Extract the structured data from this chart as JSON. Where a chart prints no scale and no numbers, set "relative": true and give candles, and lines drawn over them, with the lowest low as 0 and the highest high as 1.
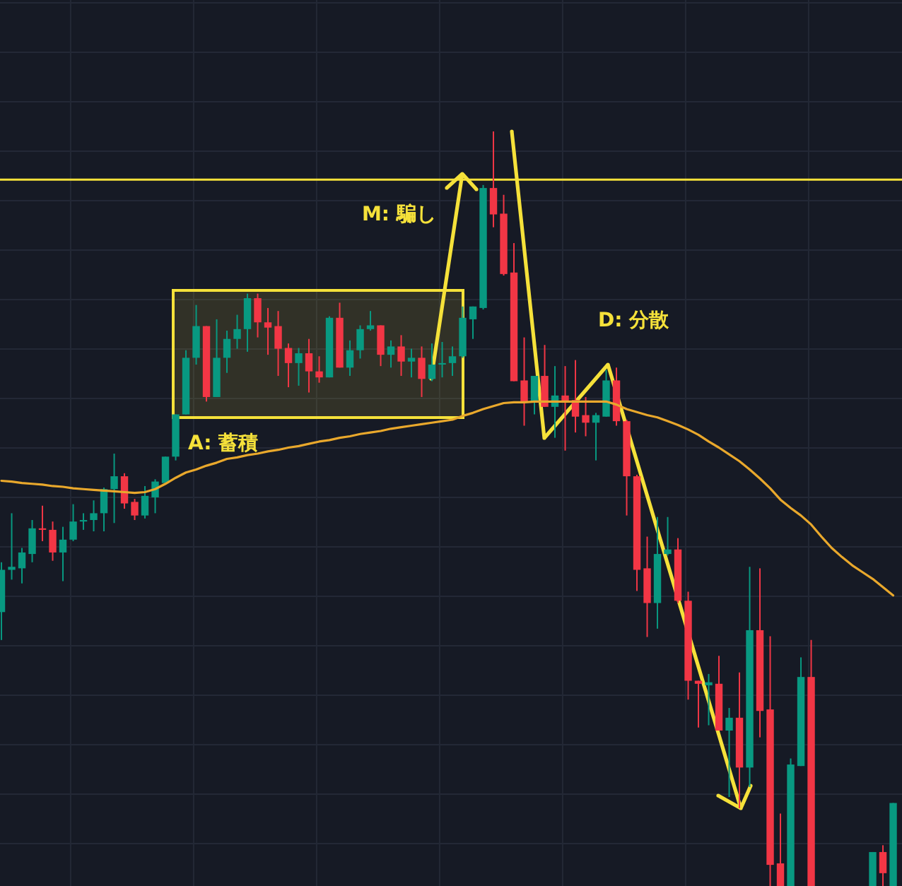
{
  "chart_data": {
    "type": "candlestick",
    "relative": true,
    "grid": true,
    "categories": [
      null,
      null,
      null,
      null,
      null,
      null,
      null,
      null,
      null,
      null,
      null,
      null,
      null,
      null,
      null,
      null,
      null,
      null,
      null,
      null,
      null,
      null,
      null,
      null,
      null,
      null,
      null,
      null,
      null,
      null,
      null,
      null,
      null,
      null,
      null,
      null,
      null,
      null,
      null,
      null,
      null,
      null,
      null,
      null,
      null,
      null,
      null,
      null,
      null,
      null,
      null,
      null,
      null,
      null,
      null,
      null,
      null,
      null,
      null,
      null,
      null,
      null,
      null,
      null,
      null,
      null,
      null,
      null,
      null,
      null,
      null,
      null,
      null,
      null,
      null,
      null,
      null,
      null,
      null,
      null,
      null,
      null,
      null,
      null,
      null,
      null,
      null,
      null
    ],
    "ohlc": [
      [
        0.363,
        0.429,
        0.326,
        0.419
      ],
      [
        0.419,
        0.494,
        0.406,
        0.423
      ],
      [
        0.421,
        0.448,
        0.401,
        0.442
      ],
      [
        0.44,
        0.485,
        0.429,
        0.474
      ],
      [
        0.474,
        0.504,
        0.457,
        0.472
      ],
      [
        0.472,
        0.483,
        0.431,
        0.442
      ],
      [
        0.442,
        0.476,
        0.404,
        0.459
      ],
      [
        0.459,
        0.506,
        0.457,
        0.483
      ],
      [
        0.483,
        0.494,
        0.472,
        0.485
      ],
      [
        0.485,
        0.511,
        0.47,
        0.494
      ],
      [
        0.494,
        0.528,
        0.47,
        0.526
      ],
      [
        0.526,
        0.573,
        0.481,
        0.543
      ],
      [
        0.543,
        0.547,
        0.5,
        0.507
      ],
      [
        0.509,
        0.513,
        0.485,
        0.491
      ],
      [
        0.491,
        0.53,
        0.487,
        0.517
      ],
      [
        0.515,
        0.539,
        0.494,
        0.536
      ],
      [
        0.534,
        0.569,
        0.532,
        0.569
      ],
      [
        0.569,
        0.625,
        0.564,
        0.625
      ],
      [
        0.625,
        0.71,
        0.625,
        0.7
      ],
      [
        0.7,
        0.77,
        0.691,
        0.742
      ],
      [
        0.742,
        0.742,
        0.642,
        0.648
      ],
      [
        0.648,
        0.751,
        0.648,
        0.7
      ],
      [
        0.7,
        0.736,
        0.68,
        0.725
      ],
      [
        0.725,
        0.757,
        0.712,
        0.738
      ],
      [
        0.738,
        0.785,
        0.708,
        0.779
      ],
      [
        0.779,
        0.785,
        0.727,
        0.747
      ],
      [
        0.747,
        0.766,
        0.704,
        0.74
      ],
      [
        0.742,
        0.762,
        0.676,
        0.712
      ],
      [
        0.713,
        0.719,
        0.661,
        0.693
      ],
      [
        0.693,
        0.713,
        0.663,
        0.706
      ],
      [
        0.706,
        0.725,
        0.654,
        0.682
      ],
      [
        0.682,
        0.702,
        0.667,
        0.674
      ],
      [
        0.674,
        0.755,
        0.674,
        0.753
      ],
      [
        0.753,
        0.773,
        0.687,
        0.687
      ],
      [
        0.687,
        0.723,
        0.676,
        0.71
      ],
      [
        0.71,
        0.743,
        0.699,
        0.738
      ],
      [
        0.738,
        0.762,
        0.736,
        0.743
      ],
      [
        0.743,
        0.743,
        0.689,
        0.704
      ],
      [
        0.704,
        0.723,
        0.687,
        0.715
      ],
      [
        0.715,
        0.73,
        0.676,
        0.695
      ],
      [
        0.695,
        0.712,
        0.674,
        0.7
      ],
      [
        0.7,
        0.715,
        0.648,
        0.672
      ],
      [
        0.672,
        0.719,
        0.669,
        0.691
      ],
      [
        0.691,
        0.721,
        0.674,
        0.693
      ],
      [
        0.693,
        0.715,
        0.676,
        0.702
      ],
      [
        0.702,
        0.768,
        0.7,
        0.753
      ],
      [
        0.751,
        0.768,
        0.725,
        0.768
      ],
      [
        0.766,
        0.929,
        0.764,
        0.925
      ],
      [
        0.925,
        1.0,
        0.873,
        0.89
      ],
      [
        0.891,
        0.916,
        0.809,
        0.811
      ],
      [
        0.813,
        0.852,
        0.669,
        0.669
      ],
      [
        0.67,
        0.727,
        0.61,
        0.642
      ],
      [
        0.642,
        0.676,
        0.625,
        0.676
      ],
      [
        0.676,
        0.717,
        0.635,
        0.635
      ],
      [
        0.635,
        0.689,
        0.594,
        0.65
      ],
      [
        0.65,
        0.689,
        0.577,
        0.642
      ],
      [
        0.644,
        0.697,
        0.601,
        0.622
      ],
      [
        0.624,
        0.648,
        0.596,
        0.614
      ],
      [
        0.614,
        0.627,
        0.564,
        0.624
      ],
      [
        0.622,
        0.684,
        0.622,
        0.67
      ],
      [
        0.67,
        0.687,
        0.61,
        0.616
      ],
      [
        0.616,
        0.618,
        0.491,
        0.543
      ],
      [
        0.543,
        0.545,
        0.391,
        0.419
      ],
      [
        0.421,
        0.463,
        0.33,
        0.375
      ],
      [
        0.375,
        0.489,
        0.341,
        0.44
      ],
      [
        0.44,
        0.489,
        0.438,
        0.446
      ],
      [
        0.446,
        0.461,
        0.375,
        0.378
      ],
      [
        0.378,
        0.39,
        0.247,
        0.272
      ],
      [
        0.272,
        0.272,
        0.21,
        0.268
      ],
      [
        0.266,
        0.281,
        0.213,
        0.27
      ],
      [
        0.268,
        0.305,
        0.206,
        0.206
      ],
      [
        0.206,
        0.236,
        0.118,
        0.223
      ],
      [
        0.223,
        0.283,
        0.103,
        0.157
      ],
      [
        0.157,
        0.423,
        0.131,
        0.339
      ],
      [
        0.339,
        0.421,
        0.197,
        0.232
      ],
      [
        0.234,
        0.331,
        0,
        0.028
      ],
      [
        0.03,
        0.096,
        0,
        0
      ],
      [
        0,
        0.169,
        0,
        0.161
      ],
      [
        0.159,
        0.303,
        0.159,
        0.277
      ],
      [
        0.277,
        0.326,
        0,
        0
      ],
      null,
      null,
      null,
      null,
      null,
      [
        0,
        0.045,
        0,
        0.045
      ],
      [
        0.045,
        0.054,
        0,
        0.017
      ],
      [
        0,
        0.11,
        0,
        0.11
      ]
    ],
    "series": [
      {
        "type": "line",
        "color": "#e9a82c",
        "values": [
          0.537,
          0.536,
          0.534,
          0.533,
          0.532,
          0.53,
          0.529,
          0.527,
          0.526,
          0.525,
          0.524,
          0.523,
          0.522,
          0.521,
          0.522,
          0.526,
          0.533,
          0.541,
          0.548,
          0.552,
          0.557,
          0.561,
          0.566,
          0.568,
          0.571,
          0.573,
          0.576,
          0.578,
          0.581,
          0.583,
          0.586,
          0.589,
          0.591,
          0.594,
          0.596,
          0.599,
          0.601,
          0.603,
          0.606,
          0.608,
          0.61,
          0.612,
          0.614,
          0.616,
          0.618,
          0.623,
          0.627,
          0.632,
          0.636,
          0.64,
          0.641,
          0.641,
          0.642,
          0.642,
          0.642,
          0.642,
          0.642,
          0.642,
          0.642,
          0.642,
          0.638,
          0.632,
          0.628,
          0.624,
          0.621,
          0.616,
          0.611,
          0.605,
          0.598,
          0.589,
          0.581,
          0.572,
          0.563,
          0.552,
          0.54,
          0.527,
          0.512,
          0.501,
          0.491,
          0.479,
          0.463,
          0.448,
          0.436,
          0.425,
          0.416,
          0.407,
          0.396,
          0.385
        ]
      }
    ],
    "ref_lines": [
      {
        "axis": "y",
        "value": 0.936,
        "color": "#f5e13a"
      }
    ],
    "annotations": [
      "M: 騙し",
      "A: 蓄積",
      "D: 分散"
    ]
  }
}
